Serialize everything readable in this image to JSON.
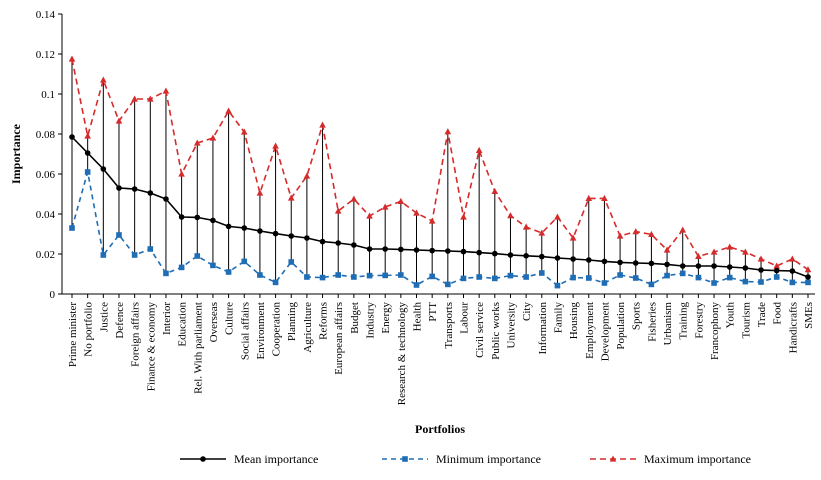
{
  "chart_data": {
    "type": "line",
    "title": "",
    "xlabel": "Portfolios",
    "ylabel": "Importance",
    "ylim": [
      0,
      0.14
    ],
    "yticks": [
      "0",
      "0.02",
      "0.04",
      "0.06",
      "0.08",
      "0.1",
      "0.12",
      "0.14"
    ],
    "grid": false,
    "legend_position": "bottom",
    "categories": [
      "Prime minister",
      "No portfolio",
      "Justice",
      "Defence",
      "Foreign affairs",
      "Finance & economy",
      "Interior",
      "Education",
      "Rel. With parliament",
      "Overseas",
      "Culture",
      "Social affairs",
      "Environment",
      "Cooperation",
      "Planning",
      "Agriculture",
      "Reforms",
      "European affairs",
      "Budget",
      "Industry",
      "Energy",
      "Research & technology",
      "Health",
      "PTT",
      "Transports",
      "Labour",
      "Civil service",
      "Public works",
      "University",
      "City",
      "Information",
      "Family",
      "Housing",
      "Employment",
      "Development",
      "Population",
      "Sports",
      "Fisheries",
      "Urbanism",
      "Training",
      "Forestry",
      "Francophony",
      "Youth",
      "Tourism",
      "Trade",
      "Food",
      "Handicrafts",
      "SMEs"
    ],
    "series": [
      {
        "name": "Mean importance",
        "color": "#000000",
        "marker": "circle",
        "values": [
          0.0785,
          0.0705,
          0.0625,
          0.053,
          0.0525,
          0.0505,
          0.0475,
          0.0385,
          0.0383,
          0.0368,
          0.0338,
          0.033,
          0.0315,
          0.0302,
          0.029,
          0.028,
          0.0262,
          0.0255,
          0.0245,
          0.0225,
          0.0225,
          0.0223,
          0.022,
          0.0217,
          0.0215,
          0.0212,
          0.0207,
          0.0202,
          0.0195,
          0.0191,
          0.0187,
          0.018,
          0.0175,
          0.017,
          0.0163,
          0.0158,
          0.0155,
          0.0153,
          0.0148,
          0.014,
          0.014,
          0.014,
          0.0135,
          0.013,
          0.012,
          0.0117,
          0.0115,
          0.0085
        ]
      },
      {
        "name": "Minimum importance",
        "color": "#1f6db5",
        "marker": "square",
        "values": [
          0.033,
          0.061,
          0.0195,
          0.0295,
          0.0195,
          0.0225,
          0.0103,
          0.0133,
          0.019,
          0.0143,
          0.011,
          0.0163,
          0.0095,
          0.0058,
          0.016,
          0.0085,
          0.0082,
          0.0095,
          0.0085,
          0.0092,
          0.0093,
          0.0095,
          0.0045,
          0.0088,
          0.0048,
          0.0078,
          0.0085,
          0.0078,
          0.0092,
          0.0085,
          0.0105,
          0.0042,
          0.0082,
          0.008,
          0.0055,
          0.0095,
          0.008,
          0.0048,
          0.0092,
          0.0103,
          0.0082,
          0.0055,
          0.0082,
          0.0062,
          0.006,
          0.0085,
          0.0058,
          0.0058
        ]
      },
      {
        "name": "Maximum importance",
        "color": "#d62b2b",
        "marker": "triangle",
        "values": [
          0.1175,
          0.079,
          0.107,
          0.0865,
          0.0975,
          0.0975,
          0.1015,
          0.06,
          0.0755,
          0.078,
          0.0915,
          0.081,
          0.0505,
          0.074,
          0.048,
          0.059,
          0.0845,
          0.0415,
          0.0475,
          0.039,
          0.0435,
          0.0463,
          0.0405,
          0.0365,
          0.0812,
          0.0385,
          0.0718,
          0.0513,
          0.0392,
          0.0335,
          0.0305,
          0.0385,
          0.028,
          0.0478,
          0.0478,
          0.029,
          0.0312,
          0.0298,
          0.022,
          0.032,
          0.0188,
          0.021,
          0.0235,
          0.021,
          0.0175,
          0.014,
          0.0175,
          0.0122
        ]
      }
    ]
  }
}
